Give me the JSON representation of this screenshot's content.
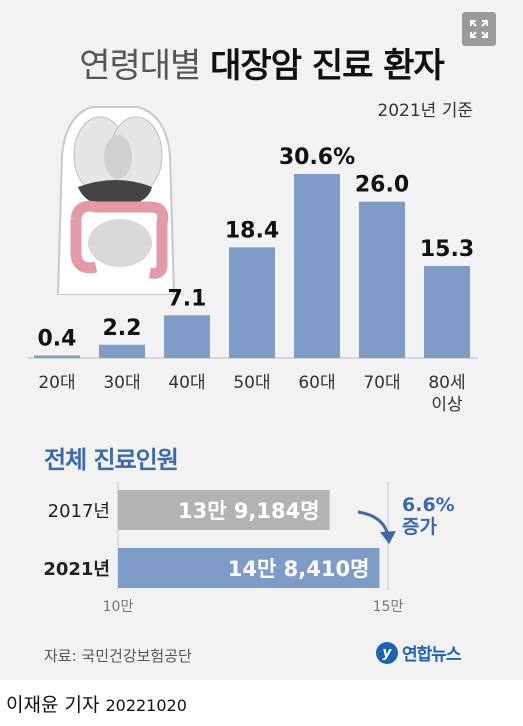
{
  "header": {
    "title_light": "연령대별",
    "title_bold": "대장암 진료 환자",
    "basis": "2021년 기준"
  },
  "chart_data": [
    {
      "type": "bar",
      "title": "연령대별 대장암 진료 환자",
      "categories": [
        "20대",
        "30대",
        "40대",
        "50대",
        "60대",
        "70대",
        "80세 이상"
      ],
      "category_lines": [
        [
          "20대"
        ],
        [
          "30대"
        ],
        [
          "40대"
        ],
        [
          "50대"
        ],
        [
          "60대"
        ],
        [
          "70대"
        ],
        [
          "80세",
          "이상"
        ]
      ],
      "values": [
        0.4,
        2.2,
        7.1,
        18.4,
        30.6,
        26.0,
        15.3
      ],
      "value_labels": [
        "0.4",
        "2.2",
        "7.1",
        "18.4",
        "30.6%",
        "26.0",
        "15.3"
      ],
      "ylim": [
        0,
        30.6
      ],
      "grid": false,
      "bar_color": "#7f9bc8"
    },
    {
      "type": "bar",
      "orientation": "horizontal",
      "title": "전체 진료인원",
      "categories": [
        "2017년",
        "2021년"
      ],
      "values": [
        139184,
        148410
      ],
      "value_labels": [
        "13만 9,184명",
        "14만 8,410명"
      ],
      "xlim": [
        100000,
        150000
      ],
      "xticks": [
        "10만",
        "15만"
      ],
      "colors": [
        "#b3b3b3",
        "#7f9bc8"
      ],
      "annotation": [
        "6.6%",
        "증가"
      ]
    }
  ],
  "footer": {
    "source": "자료: 국민건강보험공단",
    "logo_mark": "y",
    "logo_text": "연합뉴스",
    "byline": "이재윤 기자",
    "date": "20221020"
  },
  "colors": {
    "background": "#f2f2f2",
    "accent_blue": "#3d6aa6",
    "bar_blue": "#7f9bc8",
    "bar_gray": "#b3b3b3"
  }
}
